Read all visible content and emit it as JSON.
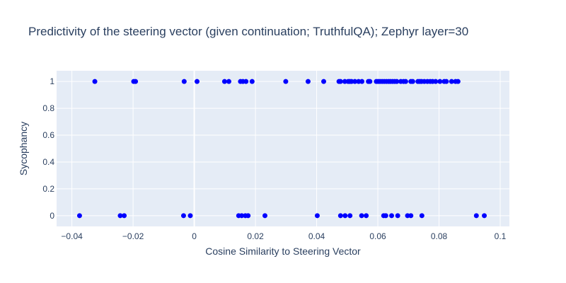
{
  "chart_data": {
    "type": "scatter",
    "title": "Predictivity of the steering vector (given continuation; TruthfulQA); Zephyr layer=30",
    "xlabel": "Cosine Similarity to Steering Vector",
    "ylabel": "Sycophancy",
    "xlim": [
      -0.045,
      0.103
    ],
    "ylim": [
      -0.08,
      1.08
    ],
    "x_ticks": [
      -0.04,
      -0.02,
      0,
      0.02,
      0.04,
      0.06,
      0.08,
      0.1
    ],
    "x_tick_labels": [
      "−0.04",
      "−0.02",
      "0",
      "0.02",
      "0.04",
      "0.06",
      "0.08",
      "0.1"
    ],
    "y_ticks": [
      0,
      0.2,
      0.4,
      0.6,
      0.8,
      1
    ],
    "y_tick_labels": [
      "0",
      "0.2",
      "0.4",
      "0.6",
      "0.8",
      "1"
    ],
    "grid": true,
    "marker_color": "#0000ff",
    "plot_bg": "#e5ecf6",
    "series": [
      {
        "points": [
          [
            -0.0325,
            1
          ],
          [
            -0.0198,
            1
          ],
          [
            -0.0192,
            1
          ],
          [
            -0.0033,
            1
          ],
          [
            0.0009,
            1
          ],
          [
            0.0099,
            1
          ],
          [
            0.0113,
            1
          ],
          [
            0.0151,
            1
          ],
          [
            0.0159,
            1
          ],
          [
            0.0169,
            1
          ],
          [
            0.0189,
            1
          ],
          [
            0.0299,
            1
          ],
          [
            0.0372,
            1
          ],
          [
            0.0423,
            1
          ],
          [
            0.0473,
            1
          ],
          [
            0.0478,
            1
          ],
          [
            0.0492,
            1
          ],
          [
            0.0503,
            1
          ],
          [
            0.0508,
            1
          ],
          [
            0.0514,
            1
          ],
          [
            0.0525,
            1
          ],
          [
            0.0537,
            1
          ],
          [
            0.0548,
            1
          ],
          [
            0.0569,
            1
          ],
          [
            0.0574,
            1
          ],
          [
            0.0595,
            1
          ],
          [
            0.0601,
            1
          ],
          [
            0.0607,
            1
          ],
          [
            0.0614,
            1
          ],
          [
            0.0621,
            1
          ],
          [
            0.0628,
            1
          ],
          [
            0.0635,
            1
          ],
          [
            0.0641,
            1
          ],
          [
            0.0648,
            1
          ],
          [
            0.0655,
            1
          ],
          [
            0.0662,
            1
          ],
          [
            0.0675,
            1
          ],
          [
            0.0684,
            1
          ],
          [
            0.0691,
            1
          ],
          [
            0.0708,
            1
          ],
          [
            0.0714,
            1
          ],
          [
            0.0731,
            1
          ],
          [
            0.0737,
            1
          ],
          [
            0.0743,
            1
          ],
          [
            0.0752,
            1
          ],
          [
            0.0762,
            1
          ],
          [
            0.0771,
            1
          ],
          [
            0.0779,
            1
          ],
          [
            0.0789,
            1
          ],
          [
            0.0803,
            1
          ],
          [
            0.0817,
            1
          ],
          [
            0.0824,
            1
          ],
          [
            0.0841,
            1
          ],
          [
            0.0854,
            1
          ],
          [
            0.0862,
            1
          ],
          [
            -0.0375,
            0
          ],
          [
            -0.0242,
            0
          ],
          [
            -0.0229,
            0
          ],
          [
            -0.0035,
            0
          ],
          [
            -0.0013,
            0
          ],
          [
            0.0145,
            0
          ],
          [
            0.0155,
            0
          ],
          [
            0.0167,
            0
          ],
          [
            0.0176,
            0
          ],
          [
            0.0231,
            0
          ],
          [
            0.0402,
            0
          ],
          [
            0.0478,
            0
          ],
          [
            0.0493,
            0
          ],
          [
            0.0509,
            0
          ],
          [
            0.0547,
            0
          ],
          [
            0.0562,
            0
          ],
          [
            0.0619,
            0
          ],
          [
            0.0626,
            0
          ],
          [
            0.0645,
            0
          ],
          [
            0.0665,
            0
          ],
          [
            0.0697,
            0
          ],
          [
            0.0708,
            0
          ],
          [
            0.0744,
            0
          ],
          [
            0.0922,
            0
          ],
          [
            0.0948,
            0
          ]
        ]
      }
    ]
  }
}
